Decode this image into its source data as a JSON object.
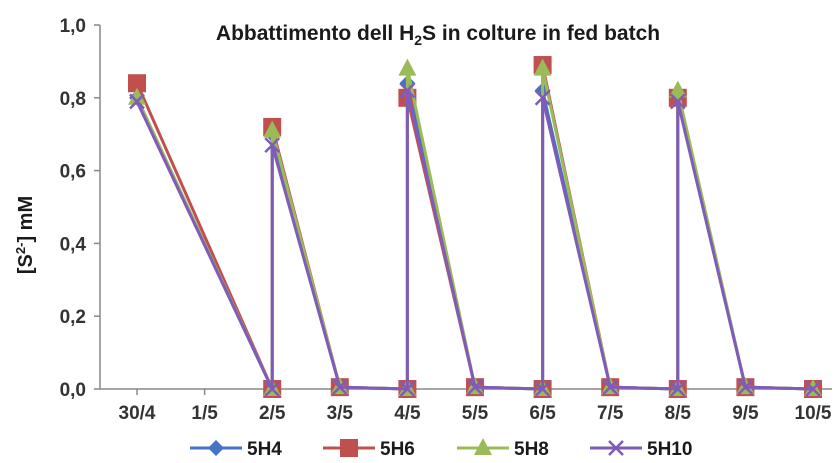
{
  "chart_data": {
    "type": "line",
    "title": "Abbattimento dell H2S in colture in fed batch",
    "title_parts": {
      "pre": "Abbattimento dell H",
      "sub": "2",
      "post": "S in colture in fed batch"
    },
    "ylabel": "[S2-] mM",
    "ylabel_parts": {
      "pre": "[S",
      "sup": "2-",
      "post": "] mM"
    },
    "xlabel": "",
    "ylim": [
      0,
      1.0
    ],
    "ytick_labels": [
      "0,0",
      "0,2",
      "0,4",
      "0,6",
      "0,8",
      "1,0"
    ],
    "categories": [
      "30/4",
      "1/5",
      "2/5",
      "3/5",
      "4/5",
      "5/5",
      "6/5",
      "7/5",
      "8/5",
      "9/5",
      "10/5"
    ],
    "grid": false,
    "legend_position": "bottom",
    "series": [
      {
        "name": "5H4",
        "color": "#4472c4",
        "marker": "diamond",
        "points": [
          [
            0,
            0.8
          ],
          [
            2,
            0.0
          ],
          [
            2,
            0.7
          ],
          [
            3,
            0.005
          ],
          [
            4,
            0.0
          ],
          [
            4,
            0.84
          ],
          [
            5,
            0.005
          ],
          [
            6,
            0.0
          ],
          [
            6,
            0.82
          ],
          [
            7,
            0.005
          ],
          [
            8,
            0.0
          ],
          [
            8,
            0.8
          ],
          [
            9,
            0.005
          ],
          [
            10,
            0.0
          ]
        ]
      },
      {
        "name": "5H6",
        "color": "#c0504d",
        "marker": "square",
        "points": [
          [
            0,
            0.84
          ],
          [
            2,
            0.0
          ],
          [
            2,
            0.72
          ],
          [
            3,
            0.005
          ],
          [
            4,
            0.0
          ],
          [
            4,
            0.8
          ],
          [
            5,
            0.005
          ],
          [
            6,
            0.0
          ],
          [
            6,
            0.89
          ],
          [
            7,
            0.005
          ],
          [
            8,
            0.0
          ],
          [
            8,
            0.8
          ],
          [
            9,
            0.005
          ],
          [
            10,
            0.0
          ]
        ]
      },
      {
        "name": "5H8",
        "color": "#9bbb59",
        "marker": "triangle",
        "points": [
          [
            0,
            0.8
          ],
          [
            2,
            0.0
          ],
          [
            2,
            0.71
          ],
          [
            3,
            0.005
          ],
          [
            4,
            0.0
          ],
          [
            4,
            0.88
          ],
          [
            5,
            0.005
          ],
          [
            6,
            0.0
          ],
          [
            6,
            0.88
          ],
          [
            7,
            0.005
          ],
          [
            8,
            0.0
          ],
          [
            8,
            0.82
          ],
          [
            9,
            0.005
          ],
          [
            10,
            0.0
          ]
        ]
      },
      {
        "name": "5H10",
        "color": "#7e5cb8",
        "marker": "x",
        "points": [
          [
            0,
            0.79
          ],
          [
            2,
            0.0
          ],
          [
            2,
            0.67
          ],
          [
            3,
            0.005
          ],
          [
            4,
            0.0
          ],
          [
            4,
            0.82
          ],
          [
            5,
            0.005
          ],
          [
            6,
            0.0
          ],
          [
            6,
            0.8
          ],
          [
            7,
            0.005
          ],
          [
            8,
            0.0
          ],
          [
            8,
            0.79
          ],
          [
            9,
            0.005
          ],
          [
            10,
            0.0
          ]
        ]
      }
    ]
  }
}
